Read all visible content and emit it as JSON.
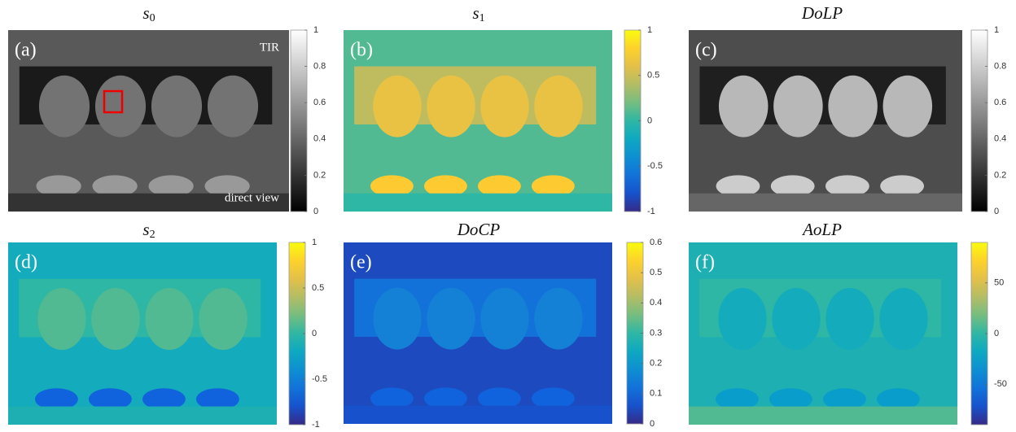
{
  "panels": [
    {
      "title": {
        "text": "s",
        "sub": "0"
      },
      "label": "(a)",
      "annotations": [
        "TIR",
        "direct view"
      ],
      "colorbar": {
        "colormap": "gray",
        "lim": [
          0,
          1
        ],
        "ticks": [
          1,
          0.8,
          0.6,
          0.4,
          0.2,
          0
        ]
      }
    },
    {
      "title": {
        "text": "s",
        "sub": "1"
      },
      "label": "(b)",
      "colorbar": {
        "colormap": "parula",
        "lim": [
          -1,
          1
        ],
        "ticks": [
          1,
          0.5,
          0,
          -0.5,
          -1
        ]
      }
    },
    {
      "title": {
        "text": "DoLP"
      },
      "label": "(c)",
      "colorbar": {
        "colormap": "gray",
        "lim": [
          0,
          1
        ],
        "ticks": [
          1,
          0.8,
          0.6,
          0.4,
          0.2,
          0
        ]
      }
    },
    {
      "title": {
        "text": "s",
        "sub": "2"
      },
      "label": "(d)",
      "colorbar": {
        "colormap": "parula",
        "lim": [
          -1,
          1
        ],
        "ticks": [
          1,
          0.5,
          0,
          -0.5,
          -1
        ]
      }
    },
    {
      "title": {
        "text": "DoCP"
      },
      "label": "(e)",
      "colorbar": {
        "colormap": "parula",
        "lim": [
          0,
          0.6
        ],
        "ticks": [
          0.6,
          0.5,
          0.4,
          0.3,
          0.2,
          0.1,
          0
        ]
      }
    },
    {
      "title": {
        "text": "AoLP"
      },
      "label": "(f)",
      "colorbar": {
        "colormap": "parula",
        "lim": [
          -90,
          90
        ],
        "ticks": [
          50,
          0,
          -50
        ]
      }
    }
  ]
}
